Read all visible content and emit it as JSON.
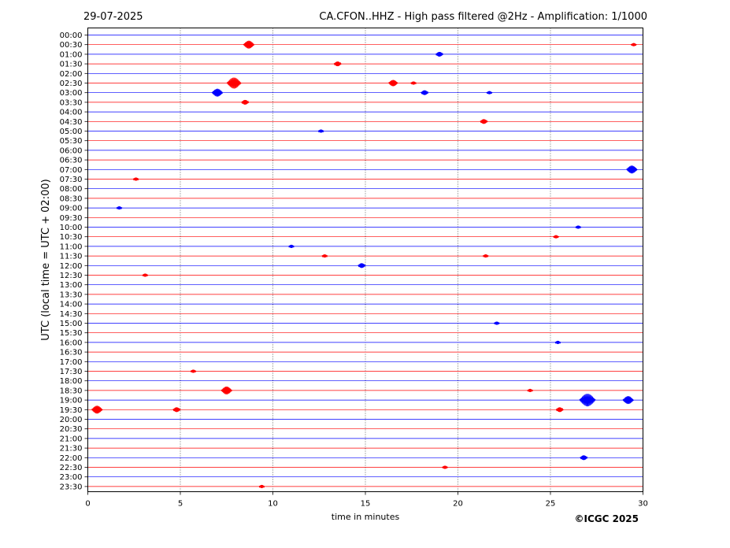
{
  "header": {
    "date": "29-07-2025",
    "title": "CA.CFON..HHZ - High pass filtered @2Hz - Amplification: 1/1000"
  },
  "credit": "©ICGC 2025",
  "colors": {
    "red": "#ff0000",
    "blue": "#0000ff",
    "frame": "#000000"
  },
  "chart_data": {
    "type": "line",
    "title": "CA.CFON..HHZ - High pass filtered @2Hz - Amplification: 1/1000",
    "xlabel": "time in minutes",
    "ylabel": "UTC (local time = UTC + 02:00)",
    "xlim": [
      0,
      30
    ],
    "x_ticks": [
      "0",
      "5",
      "10",
      "15",
      "20",
      "25",
      "30"
    ],
    "x_gridlines": [
      5,
      10,
      15,
      20,
      25
    ],
    "grid": "vertical dotted",
    "row_colors": [
      "blue",
      "red"
    ],
    "rows": [
      "00:00",
      "00:30",
      "01:00",
      "01:30",
      "02:00",
      "02:30",
      "03:00",
      "03:30",
      "04:00",
      "04:30",
      "05:00",
      "05:30",
      "06:00",
      "06:30",
      "07:00",
      "07:30",
      "08:00",
      "08:30",
      "09:00",
      "09:30",
      "10:00",
      "10:30",
      "11:00",
      "11:30",
      "12:00",
      "12:30",
      "13:00",
      "13:30",
      "14:00",
      "14:30",
      "15:00",
      "15:30",
      "16:00",
      "16:30",
      "17:00",
      "17:30",
      "18:00",
      "18:30",
      "19:00",
      "19:30",
      "20:00",
      "20:30",
      "21:00",
      "21:30",
      "22:00",
      "22:30",
      "23:00",
      "23:30"
    ],
    "events": [
      {
        "row": "00:30",
        "x": 8.7,
        "amp": 5
      },
      {
        "row": "00:30",
        "x": 29.5,
        "amp": 2
      },
      {
        "row": "01:00",
        "x": 19.0,
        "amp": 3
      },
      {
        "row": "01:30",
        "x": 13.5,
        "amp": 3
      },
      {
        "row": "02:30",
        "x": 7.9,
        "amp": 7
      },
      {
        "row": "02:30",
        "x": 16.5,
        "amp": 4
      },
      {
        "row": "02:30",
        "x": 17.6,
        "amp": 2
      },
      {
        "row": "03:00",
        "x": 7.0,
        "amp": 5
      },
      {
        "row": "03:00",
        "x": 18.2,
        "amp": 3
      },
      {
        "row": "03:00",
        "x": 21.7,
        "amp": 2
      },
      {
        "row": "03:30",
        "x": 8.5,
        "amp": 3
      },
      {
        "row": "04:30",
        "x": 21.4,
        "amp": 3
      },
      {
        "row": "05:00",
        "x": 12.6,
        "amp": 2
      },
      {
        "row": "07:00",
        "x": 29.4,
        "amp": 5
      },
      {
        "row": "07:30",
        "x": 2.6,
        "amp": 2
      },
      {
        "row": "09:00",
        "x": 1.7,
        "amp": 2
      },
      {
        "row": "10:00",
        "x": 26.5,
        "amp": 2
      },
      {
        "row": "10:30",
        "x": 25.3,
        "amp": 2
      },
      {
        "row": "11:00",
        "x": 11.0,
        "amp": 2
      },
      {
        "row": "11:30",
        "x": 12.8,
        "amp": 2
      },
      {
        "row": "11:30",
        "x": 21.5,
        "amp": 2
      },
      {
        "row": "12:00",
        "x": 14.8,
        "amp": 3
      },
      {
        "row": "12:30",
        "x": 3.1,
        "amp": 2
      },
      {
        "row": "15:00",
        "x": 22.1,
        "amp": 2
      },
      {
        "row": "16:00",
        "x": 25.4,
        "amp": 2
      },
      {
        "row": "17:30",
        "x": 5.7,
        "amp": 2
      },
      {
        "row": "18:30",
        "x": 7.5,
        "amp": 5
      },
      {
        "row": "18:30",
        "x": 23.9,
        "amp": 2
      },
      {
        "row": "19:00",
        "x": 27.0,
        "amp": 8
      },
      {
        "row": "19:00",
        "x": 29.2,
        "amp": 5
      },
      {
        "row": "19:30",
        "x": 0.5,
        "amp": 5
      },
      {
        "row": "19:30",
        "x": 4.8,
        "amp": 3
      },
      {
        "row": "19:30",
        "x": 25.5,
        "amp": 3
      },
      {
        "row": "22:00",
        "x": 26.8,
        "amp": 3
      },
      {
        "row": "22:30",
        "x": 19.3,
        "amp": 2
      },
      {
        "row": "23:30",
        "x": 9.4,
        "amp": 2
      }
    ]
  }
}
